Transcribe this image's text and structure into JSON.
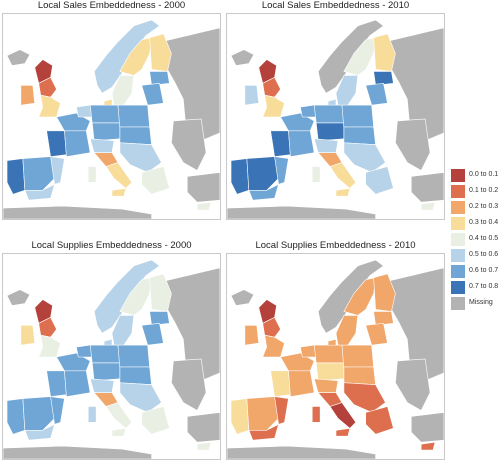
{
  "legend": {
    "items": [
      {
        "label": "0.0 to 0.1",
        "color": "#b5413c"
      },
      {
        "label": "0.1 to 0.2",
        "color": "#de6f4e"
      },
      {
        "label": "0.2 to 0.3",
        "color": "#f1a66a"
      },
      {
        "label": "0.3 to 0.4",
        "color": "#f8dc9a"
      },
      {
        "label": "0.4 to 0.5",
        "color": "#e9efe3"
      },
      {
        "label": "0.5 to 0.6",
        "color": "#b7d3ea"
      },
      {
        "label": "0.6 to 0.7",
        "color": "#6fa6d5"
      },
      {
        "label": "0.7 to 0.8",
        "color": "#3a74b6"
      },
      {
        "label": "Missing",
        "color": "#b3b3b3"
      }
    ]
  },
  "maps": [
    {
      "title": "Local Sales Embeddedness - 2000",
      "regions": {
        "iceland": 8,
        "uk_scotland": 0,
        "uk_north": 1,
        "uk_south": 3,
        "ireland": 2,
        "norway": 5,
        "sweden_south": 4,
        "sweden_north": 3,
        "finland": 3,
        "finland_south": 6,
        "denmark": 3,
        "baltics": 6,
        "iberia_west": 7,
        "iberia_central": 6,
        "iberia_east": 5,
        "iberia_south": 5,
        "france_north": 6,
        "france_west": 7,
        "france_south": 6,
        "benelux": 5,
        "germany_north": 6,
        "germany_south": 6,
        "poland": 6,
        "czech_austria": 6,
        "alps": 5,
        "italy_north": 2,
        "italy_south": 3,
        "sicily": 3,
        "sardinia": 4,
        "balkans": 5,
        "greece": 4,
        "cyprus": 4,
        "russia": 8,
        "east_missing": 8,
        "turkey": 8,
        "north_africa": 8
      }
    },
    {
      "title": "Local Sales Embeddedness - 2010",
      "regions": {
        "iceland": 8,
        "uk_scotland": 0,
        "uk_north": 1,
        "uk_south": 3,
        "ireland": 5,
        "norway": 8,
        "sweden_south": 5,
        "sweden_north": 4,
        "finland": 3,
        "finland_south": 7,
        "denmark": 5,
        "baltics": 6,
        "iberia_west": 7,
        "iberia_central": 7,
        "iberia_east": 6,
        "iberia_south": 6,
        "france_north": 6,
        "france_west": 7,
        "france_south": 6,
        "benelux": 6,
        "germany_north": 6,
        "germany_south": 7,
        "poland": 6,
        "czech_austria": 6,
        "alps": 5,
        "italy_north": 2,
        "italy_south": 3,
        "sicily": 3,
        "sardinia": 4,
        "balkans": 5,
        "greece": 5,
        "cyprus": 4,
        "russia": 8,
        "east_missing": 8,
        "turkey": 8,
        "north_africa": 8
      }
    },
    {
      "title": "Local Supplies Embeddedness - 2000",
      "regions": {
        "iceland": 8,
        "uk_scotland": 0,
        "uk_north": 1,
        "uk_south": 4,
        "ireland": 3,
        "norway": 5,
        "sweden_south": 5,
        "sweden_north": 4,
        "finland": 4,
        "finland_south": 6,
        "denmark": 5,
        "baltics": 6,
        "iberia_west": 6,
        "iberia_central": 6,
        "iberia_east": 6,
        "iberia_south": 5,
        "france_north": 6,
        "france_west": 6,
        "france_south": 6,
        "benelux": 6,
        "germany_north": 6,
        "germany_south": 6,
        "poland": 6,
        "czech_austria": 6,
        "alps": 5,
        "italy_north": 2,
        "italy_south": 4,
        "sicily": 4,
        "sardinia": 5,
        "balkans": 5,
        "greece": 4,
        "cyprus": 4,
        "russia": 8,
        "east_missing": 8,
        "turkey": 8,
        "north_africa": 8
      }
    },
    {
      "title": "Local Supplies Embeddedness - 2010",
      "regions": {
        "iceland": 8,
        "uk_scotland": 0,
        "uk_north": 1,
        "uk_south": 2,
        "ireland": 2,
        "norway": 8,
        "sweden_south": 2,
        "sweden_north": 2,
        "finland": 2,
        "finland_south": 2,
        "denmark": 2,
        "baltics": 2,
        "iberia_west": 3,
        "iberia_central": 2,
        "iberia_east": 1,
        "iberia_south": 1,
        "france_north": 2,
        "france_west": 3,
        "france_south": 2,
        "benelux": 2,
        "germany_north": 2,
        "germany_south": 3,
        "poland": 2,
        "czech_austria": 2,
        "alps": 2,
        "italy_north": 1,
        "italy_south": 0,
        "sicily": 1,
        "sardinia": 1,
        "balkans": 1,
        "greece": 1,
        "cyprus": 1,
        "russia": 8,
        "east_missing": 8,
        "turkey": 8,
        "north_africa": 8
      }
    }
  ]
}
